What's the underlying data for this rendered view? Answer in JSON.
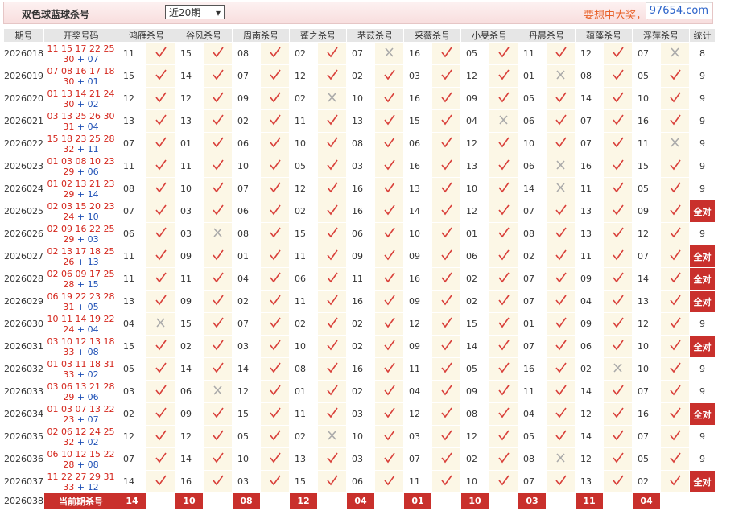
{
  "header": {
    "title": "双色球蓝球杀号",
    "select": "近20期",
    "marquee": "要想中大奖，天天彩经",
    "watermark": "97654.com"
  },
  "table": {
    "columns": [
      "期号",
      "开奖号码",
      "鸿雁杀号",
      "谷风杀号",
      "周南杀号",
      "蓬之杀号",
      "芣苡杀号",
      "采薇杀号",
      "小旻杀号",
      "丹晨杀号",
      "蕴藻杀号",
      "浮萍杀号",
      "统计"
    ],
    "rows": [
      {
        "period": "2026018",
        "red": [
          "11",
          "15",
          "17",
          "22",
          "25",
          "30"
        ],
        "blue": "+ 07",
        "picks": [
          [
            "11",
            true
          ],
          [
            "15",
            true
          ],
          [
            "08",
            true
          ],
          [
            "02",
            true
          ],
          [
            "07",
            false
          ],
          [
            "16",
            true
          ],
          [
            "05",
            true
          ],
          [
            "11",
            true
          ],
          [
            "12",
            true
          ],
          [
            "07",
            false
          ]
        ],
        "stat": "8"
      },
      {
        "period": "2026019",
        "red": [
          "07",
          "08",
          "16",
          "17",
          "18",
          "30"
        ],
        "blue": "+ 01",
        "picks": [
          [
            "15",
            true
          ],
          [
            "14",
            true
          ],
          [
            "07",
            true
          ],
          [
            "12",
            true
          ],
          [
            "02",
            true
          ],
          [
            "03",
            true
          ],
          [
            "12",
            true
          ],
          [
            "01",
            false
          ],
          [
            "08",
            true
          ],
          [
            "05",
            true
          ]
        ],
        "stat": "9"
      },
      {
        "period": "2026020",
        "red": [
          "01",
          "13",
          "14",
          "21",
          "24",
          "30"
        ],
        "blue": "+ 02",
        "picks": [
          [
            "12",
            true
          ],
          [
            "12",
            true
          ],
          [
            "09",
            true
          ],
          [
            "02",
            false
          ],
          [
            "10",
            true
          ],
          [
            "16",
            true
          ],
          [
            "09",
            true
          ],
          [
            "05",
            true
          ],
          [
            "14",
            true
          ],
          [
            "10",
            true
          ]
        ],
        "stat": "9"
      },
      {
        "period": "2026021",
        "red": [
          "03",
          "13",
          "25",
          "26",
          "30",
          "31"
        ],
        "blue": "+ 04",
        "picks": [
          [
            "13",
            true
          ],
          [
            "13",
            true
          ],
          [
            "02",
            true
          ],
          [
            "11",
            true
          ],
          [
            "13",
            true
          ],
          [
            "15",
            true
          ],
          [
            "04",
            false
          ],
          [
            "06",
            true
          ],
          [
            "07",
            true
          ],
          [
            "16",
            true
          ]
        ],
        "stat": "9"
      },
      {
        "period": "2026022",
        "red": [
          "15",
          "18",
          "23",
          "25",
          "28",
          "32"
        ],
        "blue": "+ 11",
        "picks": [
          [
            "07",
            true
          ],
          [
            "01",
            true
          ],
          [
            "06",
            true
          ],
          [
            "10",
            true
          ],
          [
            "08",
            true
          ],
          [
            "06",
            true
          ],
          [
            "12",
            true
          ],
          [
            "10",
            true
          ],
          [
            "07",
            true
          ],
          [
            "11",
            false
          ]
        ],
        "stat": "9"
      },
      {
        "period": "2026023",
        "red": [
          "01",
          "03",
          "08",
          "10",
          "23",
          "29"
        ],
        "blue": "+ 06",
        "picks": [
          [
            "11",
            true
          ],
          [
            "11",
            true
          ],
          [
            "10",
            true
          ],
          [
            "05",
            true
          ],
          [
            "03",
            true
          ],
          [
            "16",
            true
          ],
          [
            "13",
            true
          ],
          [
            "06",
            false
          ],
          [
            "16",
            true
          ],
          [
            "15",
            true
          ]
        ],
        "stat": "9"
      },
      {
        "period": "2026024",
        "red": [
          "01",
          "02",
          "13",
          "21",
          "23",
          "29"
        ],
        "blue": "+ 14",
        "picks": [
          [
            "08",
            true
          ],
          [
            "10",
            true
          ],
          [
            "07",
            true
          ],
          [
            "12",
            true
          ],
          [
            "16",
            true
          ],
          [
            "13",
            true
          ],
          [
            "10",
            true
          ],
          [
            "14",
            false
          ],
          [
            "11",
            true
          ],
          [
            "05",
            true
          ]
        ],
        "stat": "9"
      },
      {
        "period": "2026025",
        "red": [
          "02",
          "03",
          "15",
          "20",
          "23",
          "24"
        ],
        "blue": "+ 10",
        "picks": [
          [
            "07",
            true
          ],
          [
            "03",
            true
          ],
          [
            "06",
            true
          ],
          [
            "02",
            true
          ],
          [
            "16",
            true
          ],
          [
            "14",
            true
          ],
          [
            "12",
            true
          ],
          [
            "07",
            true
          ],
          [
            "13",
            true
          ],
          [
            "09",
            true
          ]
        ],
        "stat": "全对"
      },
      {
        "period": "2026026",
        "red": [
          "02",
          "09",
          "16",
          "22",
          "25",
          "29"
        ],
        "blue": "+ 03",
        "picks": [
          [
            "06",
            true
          ],
          [
            "03",
            false
          ],
          [
            "08",
            true
          ],
          [
            "15",
            true
          ],
          [
            "06",
            true
          ],
          [
            "10",
            true
          ],
          [
            "01",
            true
          ],
          [
            "08",
            true
          ],
          [
            "13",
            true
          ],
          [
            "12",
            true
          ]
        ],
        "stat": "9"
      },
      {
        "period": "2026027",
        "red": [
          "02",
          "13",
          "17",
          "18",
          "25",
          "26"
        ],
        "blue": "+ 13",
        "picks": [
          [
            "11",
            true
          ],
          [
            "09",
            true
          ],
          [
            "01",
            true
          ],
          [
            "11",
            true
          ],
          [
            "09",
            true
          ],
          [
            "09",
            true
          ],
          [
            "06",
            true
          ],
          [
            "02",
            true
          ],
          [
            "11",
            true
          ],
          [
            "07",
            true
          ]
        ],
        "stat": "全对"
      },
      {
        "period": "2026028",
        "red": [
          "02",
          "06",
          "09",
          "17",
          "25",
          "28"
        ],
        "blue": "+ 15",
        "picks": [
          [
            "11",
            true
          ],
          [
            "11",
            true
          ],
          [
            "04",
            true
          ],
          [
            "06",
            true
          ],
          [
            "11",
            true
          ],
          [
            "16",
            true
          ],
          [
            "02",
            true
          ],
          [
            "07",
            true
          ],
          [
            "09",
            true
          ],
          [
            "14",
            true
          ]
        ],
        "stat": "全对"
      },
      {
        "period": "2026029",
        "red": [
          "06",
          "19",
          "22",
          "23",
          "28",
          "31"
        ],
        "blue": "+ 05",
        "picks": [
          [
            "13",
            true
          ],
          [
            "09",
            true
          ],
          [
            "02",
            true
          ],
          [
            "11",
            true
          ],
          [
            "16",
            true
          ],
          [
            "09",
            true
          ],
          [
            "02",
            true
          ],
          [
            "07",
            true
          ],
          [
            "04",
            true
          ],
          [
            "13",
            true
          ]
        ],
        "stat": "全对"
      },
      {
        "period": "2026030",
        "red": [
          "10",
          "11",
          "14",
          "19",
          "22",
          "24"
        ],
        "blue": "+ 04",
        "picks": [
          [
            "04",
            false
          ],
          [
            "15",
            true
          ],
          [
            "07",
            true
          ],
          [
            "02",
            true
          ],
          [
            "02",
            true
          ],
          [
            "12",
            true
          ],
          [
            "15",
            true
          ],
          [
            "01",
            true
          ],
          [
            "09",
            true
          ],
          [
            "12",
            true
          ]
        ],
        "stat": "9"
      },
      {
        "period": "2026031",
        "red": [
          "03",
          "10",
          "12",
          "13",
          "18",
          "33"
        ],
        "blue": "+ 08",
        "picks": [
          [
            "15",
            true
          ],
          [
            "02",
            true
          ],
          [
            "03",
            true
          ],
          [
            "10",
            true
          ],
          [
            "02",
            true
          ],
          [
            "09",
            true
          ],
          [
            "14",
            true
          ],
          [
            "07",
            true
          ],
          [
            "06",
            true
          ],
          [
            "10",
            true
          ]
        ],
        "stat": "全对"
      },
      {
        "period": "2026032",
        "red": [
          "01",
          "03",
          "11",
          "18",
          "31",
          "33"
        ],
        "blue": "+ 02",
        "picks": [
          [
            "05",
            true
          ],
          [
            "14",
            true
          ],
          [
            "14",
            true
          ],
          [
            "08",
            true
          ],
          [
            "16",
            true
          ],
          [
            "11",
            true
          ],
          [
            "05",
            true
          ],
          [
            "16",
            true
          ],
          [
            "02",
            false
          ],
          [
            "10",
            true
          ]
        ],
        "stat": "9"
      },
      {
        "period": "2026033",
        "red": [
          "03",
          "06",
          "13",
          "21",
          "28",
          "29"
        ],
        "blue": "+ 06",
        "picks": [
          [
            "03",
            true
          ],
          [
            "06",
            false
          ],
          [
            "12",
            true
          ],
          [
            "01",
            true
          ],
          [
            "02",
            true
          ],
          [
            "04",
            true
          ],
          [
            "09",
            true
          ],
          [
            "11",
            true
          ],
          [
            "14",
            true
          ],
          [
            "07",
            true
          ]
        ],
        "stat": "9"
      },
      {
        "period": "2026034",
        "red": [
          "01",
          "03",
          "07",
          "13",
          "22",
          "23"
        ],
        "blue": "+ 07",
        "picks": [
          [
            "02",
            true
          ],
          [
            "09",
            true
          ],
          [
            "15",
            true
          ],
          [
            "11",
            true
          ],
          [
            "03",
            true
          ],
          [
            "12",
            true
          ],
          [
            "08",
            true
          ],
          [
            "04",
            true
          ],
          [
            "12",
            true
          ],
          [
            "16",
            true
          ]
        ],
        "stat": "全对"
      },
      {
        "period": "2026035",
        "red": [
          "02",
          "06",
          "12",
          "24",
          "25",
          "32"
        ],
        "blue": "+ 02",
        "picks": [
          [
            "12",
            true
          ],
          [
            "12",
            true
          ],
          [
            "05",
            true
          ],
          [
            "02",
            false
          ],
          [
            "10",
            true
          ],
          [
            "03",
            true
          ],
          [
            "12",
            true
          ],
          [
            "05",
            true
          ],
          [
            "14",
            true
          ],
          [
            "07",
            true
          ]
        ],
        "stat": "9"
      },
      {
        "period": "2026036",
        "red": [
          "06",
          "10",
          "12",
          "15",
          "22",
          "28"
        ],
        "blue": "+ 08",
        "picks": [
          [
            "07",
            true
          ],
          [
            "14",
            true
          ],
          [
            "10",
            true
          ],
          [
            "13",
            true
          ],
          [
            "03",
            true
          ],
          [
            "07",
            true
          ],
          [
            "02",
            true
          ],
          [
            "08",
            false
          ],
          [
            "12",
            true
          ],
          [
            "05",
            true
          ]
        ],
        "stat": "9"
      },
      {
        "period": "2026037",
        "red": [
          "11",
          "22",
          "27",
          "29",
          "31",
          "33"
        ],
        "blue": "+ 12",
        "picks": [
          [
            "14",
            true
          ],
          [
            "16",
            true
          ],
          [
            "03",
            true
          ],
          [
            "15",
            true
          ],
          [
            "06",
            true
          ],
          [
            "11",
            true
          ],
          [
            "10",
            true
          ],
          [
            "07",
            true
          ],
          [
            "13",
            true
          ],
          [
            "02",
            true
          ]
        ],
        "stat": "全对"
      }
    ],
    "current": {
      "period": "2026038",
      "label": "当前期杀号",
      "picks": [
        "14",
        "10",
        "08",
        "12",
        "04",
        "01",
        "10",
        "03",
        "11",
        "04"
      ]
    }
  }
}
